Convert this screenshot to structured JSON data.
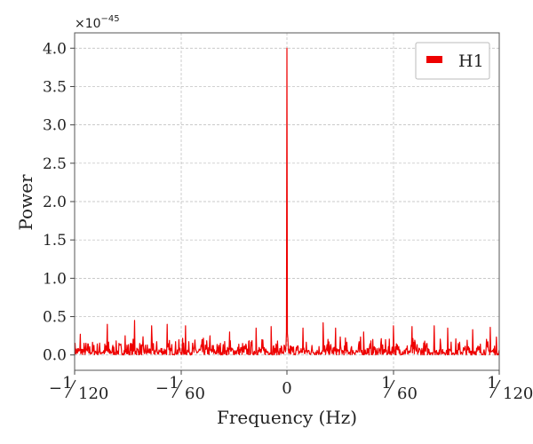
{
  "chart_data": {
    "type": "line",
    "xlabel": "Frequency (Hz)",
    "ylabel": "Power",
    "y_offset_base": "×10",
    "y_offset_exponent": "−45",
    "xlim": [
      -0.008333,
      0.008333
    ],
    "ylim": [
      -0.2,
      4.2
    ],
    "x_ticks": [
      {
        "value": -0.008333,
        "sign": "−",
        "num": "1",
        "den": "120"
      },
      {
        "value": -0.016667,
        "sign": "−",
        "num": "1",
        "den": "60"
      },
      {
        "value": 0,
        "sign": "",
        "num": "0",
        "den": ""
      },
      {
        "value": 0.016667,
        "sign": "",
        "num": "1",
        "den": "60"
      },
      {
        "value": 0.008333,
        "sign": "",
        "num": "1",
        "den": "120"
      }
    ],
    "y_ticks": [
      "0.0",
      "0.5",
      "1.0",
      "1.5",
      "2.0",
      "2.5",
      "3.0",
      "3.5",
      "4.0"
    ],
    "grid": true,
    "legend_position": "top-right",
    "series": [
      {
        "name": "H1",
        "color": "#ee0000",
        "peak": {
          "x": 0,
          "y": 4.0
        },
        "noise_peaks": [
          {
            "x": -0.00811,
            "y": 0.27
          },
          {
            "x": -0.00705,
            "y": 0.4
          },
          {
            "x": -0.00635,
            "y": 0.25
          },
          {
            "x": -0.00598,
            "y": 0.45
          },
          {
            "x": -0.00531,
            "y": 0.38
          },
          {
            "x": -0.0047,
            "y": 0.4
          },
          {
            "x": -0.00398,
            "y": 0.38
          },
          {
            "x": -0.00302,
            "y": 0.25
          },
          {
            "x": -0.00225,
            "y": 0.3
          },
          {
            "x": -0.00121,
            "y": 0.35
          },
          {
            "x": -0.00062,
            "y": 0.37
          },
          {
            "x": 0.00063,
            "y": 0.35
          },
          {
            "x": 0.00142,
            "y": 0.42
          },
          {
            "x": 0.00191,
            "y": 0.35
          },
          {
            "x": 0.00301,
            "y": 0.3
          },
          {
            "x": 0.00418,
            "y": 0.38
          },
          {
            "x": 0.00491,
            "y": 0.37
          },
          {
            "x": 0.00578,
            "y": 0.38
          },
          {
            "x": 0.00631,
            "y": 0.35
          },
          {
            "x": 0.00729,
            "y": 0.33
          },
          {
            "x": 0.00798,
            "y": 0.36
          }
        ]
      }
    ]
  }
}
